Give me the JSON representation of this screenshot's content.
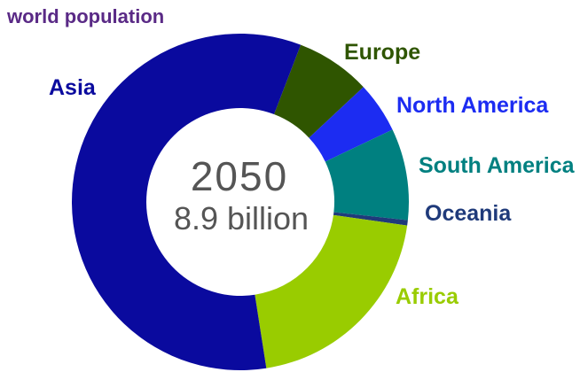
{
  "chart_data": {
    "type": "pie",
    "title": "world population",
    "center_text": [
      "2050",
      "8.9 billion"
    ],
    "hole": true,
    "slices": [
      {
        "label": "Europe",
        "value": 7.2,
        "color": "#2f5500"
      },
      {
        "label": "North America",
        "value": 4.9,
        "color": "#1c2cf2"
      },
      {
        "label": "South America",
        "value": 8.8,
        "color": "#008080"
      },
      {
        "label": "Oceania",
        "value": 0.5,
        "color": "#1f3a7a"
      },
      {
        "label": "Africa",
        "value": 20.3,
        "color": "#99cc00"
      },
      {
        "label": "Asia",
        "value": 58.3,
        "color": "#0a0a9e"
      }
    ]
  }
}
